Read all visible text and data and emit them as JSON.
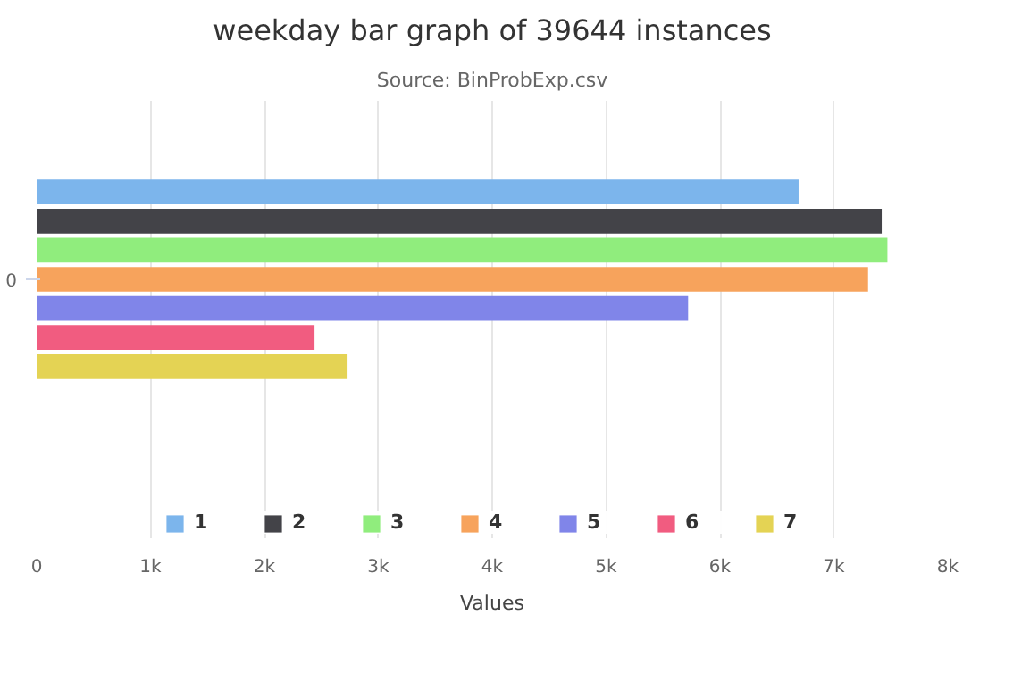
{
  "chart_data": {
    "type": "bar",
    "orientation": "horizontal",
    "title": "weekday bar graph of 39644 instances",
    "subtitle": "Source: BinProbExp.csv",
    "xlabel": "Values",
    "categories": [
      "0"
    ],
    "series": [
      {
        "name": "1",
        "color": "#7cb5ec",
        "values": [
          6690
        ]
      },
      {
        "name": "2",
        "color": "#434348",
        "values": [
          7420
        ]
      },
      {
        "name": "3",
        "color": "#90ed7d",
        "values": [
          7470
        ]
      },
      {
        "name": "4",
        "color": "#f7a35c",
        "values": [
          7300
        ]
      },
      {
        "name": "5",
        "color": "#8085e9",
        "values": [
          5720
        ]
      },
      {
        "name": "6",
        "color": "#f15c80",
        "values": [
          2440
        ]
      },
      {
        "name": "7",
        "color": "#e4d354",
        "values": [
          2730
        ]
      }
    ],
    "xlim": [
      0,
      8000
    ],
    "xticks": [
      {
        "value": 0,
        "label": "0"
      },
      {
        "value": 1000,
        "label": "1k"
      },
      {
        "value": 2000,
        "label": "2k"
      },
      {
        "value": 3000,
        "label": "3k"
      },
      {
        "value": 4000,
        "label": "4k"
      },
      {
        "value": 5000,
        "label": "5k"
      },
      {
        "value": 6000,
        "label": "6k"
      },
      {
        "value": 7000,
        "label": "7k"
      },
      {
        "value": 8000,
        "label": "8k"
      }
    ],
    "grid": "x",
    "legend": "bottom"
  }
}
